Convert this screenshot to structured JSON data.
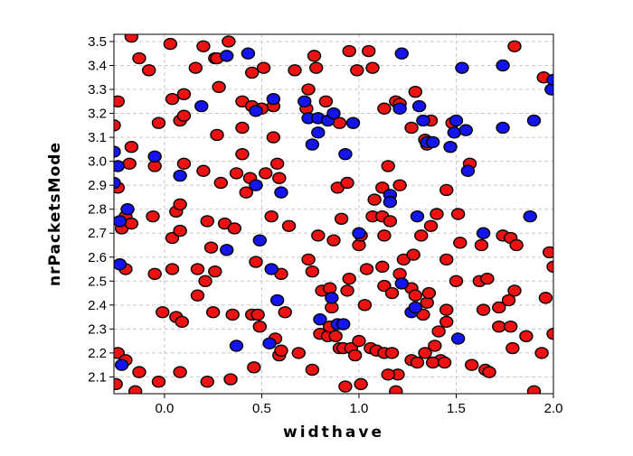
{
  "chart_data": {
    "type": "scatter",
    "title": "",
    "xlabel": "widthave",
    "ylabel": "nrPacketsMode",
    "xlim": [
      -0.26,
      2.0
    ],
    "ylim": [
      2.03,
      3.53
    ],
    "xticks": [
      0.0,
      0.5,
      1.0,
      1.5,
      2.0
    ],
    "xtick_labels": [
      "0.0",
      "0.5",
      "1.0",
      "1.5",
      "2.0"
    ],
    "yticks": [
      2.1,
      2.2,
      2.3,
      2.4,
      2.5,
      2.6,
      2.7,
      2.8,
      2.9,
      3.0,
      3.1,
      3.2,
      3.3,
      3.4,
      3.5
    ],
    "ytick_labels": [
      "2.1",
      "2.2",
      "2.3",
      "2.4",
      "2.5",
      "2.6",
      "2.7",
      "2.8",
      "2.9",
      "3.0",
      "3.1",
      "3.2",
      "3.3",
      "3.4",
      "3.5"
    ],
    "grid": true,
    "legend": "none",
    "series": [
      {
        "color": "#ee1111",
        "points": [
          [
            -0.24,
            3.25
          ],
          [
            -0.26,
            3.15
          ],
          [
            -0.13,
            3.43
          ],
          [
            -0.17,
            3.52
          ],
          [
            -0.08,
            3.38
          ],
          [
            -0.03,
            3.16
          ],
          [
            0.04,
            3.26
          ],
          [
            0.08,
            3.17
          ],
          [
            0.1,
            3.19
          ],
          [
            0.1,
            3.28
          ],
          [
            0.16,
            3.39
          ],
          [
            0.2,
            3.48
          ],
          [
            0.26,
            3.43
          ],
          [
            0.28,
            3.31
          ],
          [
            0.27,
            3.11
          ],
          [
            0.27,
            3.43
          ],
          [
            0.33,
            3.5
          ],
          [
            0.4,
            3.25
          ],
          [
            0.4,
            3.14
          ],
          [
            0.45,
            3.23
          ],
          [
            0.45,
            3.37
          ],
          [
            0.51,
            3.39
          ],
          [
            0.56,
            3.23
          ],
          [
            0.56,
            3.1
          ],
          [
            0.5,
            3.22
          ],
          [
            0.67,
            3.38
          ],
          [
            0.73,
            3.22
          ],
          [
            0.74,
            3.3
          ],
          [
            0.77,
            3.44
          ],
          [
            0.78,
            3.39
          ],
          [
            0.83,
            3.25
          ],
          [
            0.9,
            3.16
          ],
          [
            0.95,
            3.46
          ],
          [
            0.99,
            3.38
          ],
          [
            1.05,
            3.46
          ],
          [
            1.07,
            3.39
          ],
          [
            1.13,
            3.22
          ],
          [
            1.19,
            3.25
          ],
          [
            1.21,
            3.24
          ],
          [
            1.27,
            3.14
          ],
          [
            1.29,
            3.29
          ],
          [
            1.34,
            3.09
          ],
          [
            1.35,
            3.07
          ],
          [
            1.37,
            3.17
          ],
          [
            1.48,
            3.16
          ],
          [
            1.57,
            2.99
          ],
          [
            1.8,
            3.48
          ],
          [
            1.95,
            3.35
          ],
          [
            -0.17,
            3.06
          ],
          [
            -0.18,
            2.99
          ],
          [
            -0.24,
            2.89
          ],
          [
            -0.05,
            2.98
          ],
          [
            0.1,
            2.99
          ],
          [
            0.2,
            2.96
          ],
          [
            0.29,
            2.91
          ],
          [
            0.37,
            2.95
          ],
          [
            0.4,
            3.03
          ],
          [
            0.44,
            2.93
          ],
          [
            0.52,
            2.95
          ],
          [
            0.58,
            2.99
          ],
          [
            0.59,
            2.93
          ],
          [
            0.42,
            2.87
          ],
          [
            0.89,
            2.89
          ],
          [
            0.94,
            2.91
          ],
          [
            1.12,
            2.89
          ],
          [
            1.15,
            2.98
          ],
          [
            1.21,
            2.9
          ],
          [
            1.45,
            2.88
          ],
          [
            -0.22,
            2.72
          ],
          [
            -0.2,
            2.77
          ],
          [
            -0.17,
            2.74
          ],
          [
            -0.06,
            2.77
          ],
          [
            0.06,
            2.79
          ],
          [
            0.08,
            2.82
          ],
          [
            0.04,
            2.68
          ],
          [
            0.08,
            2.71
          ],
          [
            0.22,
            2.75
          ],
          [
            0.24,
            2.64
          ],
          [
            0.31,
            2.74
          ],
          [
            0.36,
            2.72
          ],
          [
            0.47,
            2.58
          ],
          [
            0.55,
            2.77
          ],
          [
            0.64,
            2.73
          ],
          [
            0.79,
            2.69
          ],
          [
            0.87,
            2.67
          ],
          [
            0.91,
            2.76
          ],
          [
            1.0,
            2.65
          ],
          [
            1.01,
            2.69
          ],
          [
            1.07,
            2.77
          ],
          [
            1.08,
            2.84
          ],
          [
            1.12,
            2.77
          ],
          [
            1.13,
            2.69
          ],
          [
            1.16,
            2.75
          ],
          [
            1.23,
            2.59
          ],
          [
            1.28,
            2.61
          ],
          [
            1.32,
            2.69
          ],
          [
            1.37,
            2.73
          ],
          [
            1.4,
            2.78
          ],
          [
            1.45,
            2.59
          ],
          [
            1.51,
            2.78
          ],
          [
            1.52,
            2.66
          ],
          [
            1.63,
            2.65
          ],
          [
            1.74,
            2.69
          ],
          [
            1.78,
            2.68
          ],
          [
            1.81,
            2.65
          ],
          [
            1.98,
            2.62
          ],
          [
            2.0,
            2.56
          ],
          [
            -0.2,
            2.55
          ],
          [
            -0.05,
            2.53
          ],
          [
            0.04,
            2.55
          ],
          [
            0.17,
            2.55
          ],
          [
            0.17,
            2.44
          ],
          [
            0.21,
            2.5
          ],
          [
            0.26,
            2.54
          ],
          [
            0.25,
            2.37
          ],
          [
            0.35,
            2.36
          ],
          [
            0.45,
            2.36
          ],
          [
            0.48,
            2.36
          ],
          [
            0.6,
            2.53
          ],
          [
            0.62,
            2.37
          ],
          [
            0.74,
            2.59
          ],
          [
            0.76,
            2.54
          ],
          [
            0.81,
            2.46
          ],
          [
            0.85,
            2.47
          ],
          [
            0.86,
            2.39
          ],
          [
            0.94,
            2.46
          ],
          [
            0.95,
            2.51
          ],
          [
            1.03,
            2.4
          ],
          [
            1.04,
            2.55
          ],
          [
            1.12,
            2.56
          ],
          [
            1.13,
            2.48
          ],
          [
            1.17,
            2.45
          ],
          [
            1.21,
            2.53
          ],
          [
            1.27,
            2.47
          ],
          [
            1.29,
            2.44
          ],
          [
            1.33,
            2.36
          ],
          [
            1.35,
            2.41
          ],
          [
            1.36,
            2.45
          ],
          [
            1.45,
            2.33
          ],
          [
            1.45,
            2.38
          ],
          [
            1.5,
            2.5
          ],
          [
            1.62,
            2.5
          ],
          [
            1.64,
            2.38
          ],
          [
            1.66,
            2.51
          ],
          [
            1.72,
            2.39
          ],
          [
            1.77,
            2.42
          ],
          [
            1.8,
            2.46
          ],
          [
            1.72,
            2.31
          ],
          [
            1.78,
            2.31
          ],
          [
            1.96,
            2.43
          ],
          [
            -0.01,
            2.37
          ],
          [
            0.06,
            2.35
          ],
          [
            0.09,
            2.33
          ],
          [
            0.49,
            2.31
          ],
          [
            0.57,
            2.26
          ],
          [
            0.59,
            2.19
          ],
          [
            0.6,
            2.21
          ],
          [
            0.69,
            2.2
          ],
          [
            0.8,
            2.28
          ],
          [
            0.84,
            2.27
          ],
          [
            0.85,
            2.31
          ],
          [
            0.88,
            2.27
          ],
          [
            0.9,
            2.22
          ],
          [
            0.92,
            2.22
          ],
          [
            0.96,
            2.22
          ],
          [
            0.98,
            2.19
          ],
          [
            1.0,
            2.25
          ],
          [
            1.06,
            2.22
          ],
          [
            1.09,
            2.21
          ],
          [
            1.13,
            2.2
          ],
          [
            1.17,
            2.2
          ],
          [
            1.2,
            2.11
          ],
          [
            1.27,
            2.17
          ],
          [
            1.3,
            2.16
          ],
          [
            1.34,
            2.2
          ],
          [
            1.39,
            2.23
          ],
          [
            1.41,
            2.29
          ],
          [
            1.42,
            2.17
          ],
          [
            1.38,
            2.16
          ],
          [
            1.44,
            2.16
          ],
          [
            1.58,
            2.15
          ],
          [
            1.65,
            2.13
          ],
          [
            1.86,
            2.27
          ],
          [
            1.79,
            2.22
          ],
          [
            1.94,
            2.2
          ],
          [
            -0.25,
            2.07
          ],
          [
            -0.24,
            2.2
          ],
          [
            -0.2,
            2.17
          ],
          [
            -0.13,
            2.12
          ],
          [
            -0.03,
            2.08
          ],
          [
            0.08,
            2.12
          ],
          [
            0.22,
            2.08
          ],
          [
            0.34,
            2.09
          ],
          [
            0.46,
            2.14
          ],
          [
            0.76,
            2.13
          ],
          [
            0.93,
            2.06
          ],
          [
            1.01,
            2.07
          ],
          [
            1.15,
            2.11
          ],
          [
            1.19,
            2.04
          ],
          [
            1.67,
            2.12
          ],
          [
            1.9,
            2.04
          ],
          [
            -0.15,
            2.04
          ],
          [
            2.0,
            2.28
          ],
          [
            0.03,
            3.49
          ]
        ]
      },
      {
        "color": "#1414ee",
        "points": [
          [
            -0.26,
            3.04
          ],
          [
            -0.24,
            2.98
          ],
          [
            -0.26,
            2.91
          ],
          [
            -0.05,
            3.02
          ],
          [
            0.08,
            2.94
          ],
          [
            0.19,
            3.23
          ],
          [
            0.32,
            3.44
          ],
          [
            0.43,
            3.45
          ],
          [
            0.47,
            3.21
          ],
          [
            0.56,
            3.26
          ],
          [
            0.6,
            2.87
          ],
          [
            0.47,
            2.9
          ],
          [
            0.72,
            3.25
          ],
          [
            0.74,
            3.18
          ],
          [
            0.76,
            3.07
          ],
          [
            0.79,
            3.12
          ],
          [
            0.79,
            3.18
          ],
          [
            0.84,
            3.17
          ],
          [
            0.87,
            3.2
          ],
          [
            0.93,
            3.03
          ],
          [
            0.97,
            3.16
          ],
          [
            1.21,
            3.22
          ],
          [
            1.22,
            3.45
          ],
          [
            1.31,
            3.23
          ],
          [
            1.33,
            3.17
          ],
          [
            1.35,
            3.08
          ],
          [
            1.38,
            3.08
          ],
          [
            1.47,
            3.06
          ],
          [
            1.49,
            3.12
          ],
          [
            1.5,
            3.17
          ],
          [
            1.53,
            3.39
          ],
          [
            1.55,
            3.13
          ],
          [
            1.56,
            2.96
          ],
          [
            1.74,
            3.14
          ],
          [
            1.74,
            3.4
          ],
          [
            1.9,
            3.17
          ],
          [
            1.99,
            3.3
          ],
          [
            -0.23,
            2.75
          ],
          [
            -0.19,
            2.8
          ],
          [
            -0.23,
            2.57
          ],
          [
            0.32,
            2.63
          ],
          [
            0.49,
            2.67
          ],
          [
            1.0,
            2.7
          ],
          [
            1.16,
            2.86
          ],
          [
            1.16,
            2.83
          ],
          [
            1.3,
            2.77
          ],
          [
            1.64,
            2.7
          ],
          [
            1.88,
            2.77
          ],
          [
            0.55,
            2.55
          ],
          [
            0.58,
            2.42
          ],
          [
            0.8,
            2.34
          ],
          [
            0.86,
            2.43
          ],
          [
            0.89,
            2.32
          ],
          [
            0.92,
            2.32
          ],
          [
            1.22,
            2.49
          ],
          [
            1.27,
            2.37
          ],
          [
            1.29,
            2.39
          ],
          [
            0.37,
            2.23
          ],
          [
            0.54,
            2.24
          ],
          [
            1.51,
            2.26
          ],
          [
            -0.22,
            2.15
          ],
          [
            2.0,
            3.34
          ]
        ]
      }
    ]
  }
}
